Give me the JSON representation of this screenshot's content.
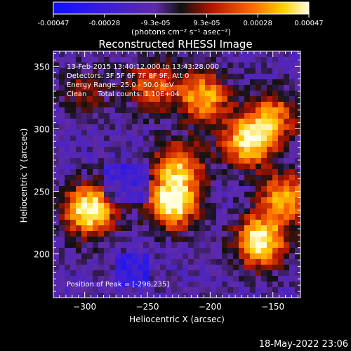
{
  "chart_data": {
    "type": "heatmap",
    "title": "Reconstructed RHESSI Image",
    "xlabel": "Heliocentric X (arcsec)",
    "ylabel": "Heliocentric Y (arcsec)",
    "xlim": [
      -325,
      -128
    ],
    "ylim": [
      165,
      362
    ],
    "xticks": [
      -300,
      -250,
      -200,
      -150
    ],
    "yticks": [
      200,
      250,
      300,
      350
    ],
    "info_lines": [
      "13-Feb-2015 13:40:12.000 to 13:43:28.000",
      "Detectors: 3F 5F 6F 7F 8F 9F, Att 0",
      "Energy Range: 25.0 - 50.0 keV",
      "Clean     Total counts: 1.10E+04"
    ],
    "peak_text": "Position of Peak = [-296,235]",
    "peak_position": [
      -296,
      235
    ],
    "colorbar": {
      "ticks": [
        "-0.00047",
        "-0.00028",
        "-9.3e-05",
        "9.3e-05",
        "0.00028",
        "0.00047"
      ],
      "min": -0.00047,
      "max": 0.00047,
      "units_text": "(photons cm⁻² s⁻¹ asec⁻²)"
    },
    "sources": [
      {
        "x": -296,
        "y": 235,
        "level": 1.0
      },
      {
        "x": -230,
        "y": 240,
        "level": 0.95
      },
      {
        "x": -225,
        "y": 270,
        "level": 0.7
      },
      {
        "x": -205,
        "y": 325,
        "level": 0.75
      },
      {
        "x": -245,
        "y": 335,
        "level": 0.55
      },
      {
        "x": -170,
        "y": 290,
        "level": 0.9
      },
      {
        "x": -150,
        "y": 310,
        "level": 0.6
      },
      {
        "x": -160,
        "y": 210,
        "level": 0.95
      },
      {
        "x": -140,
        "y": 245,
        "level": 0.75
      },
      {
        "x": -300,
        "y": 330,
        "level": 0.3
      }
    ]
  },
  "footer_timestamp": "18-May-2022 23:06"
}
